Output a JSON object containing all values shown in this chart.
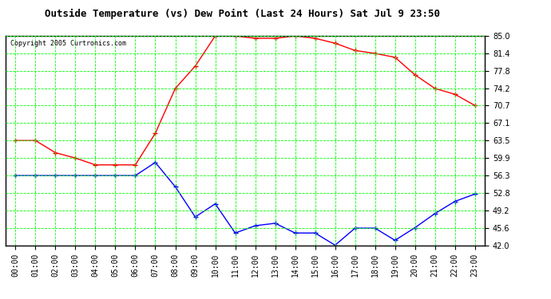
{
  "title": "Outside Temperature (vs) Dew Point (Last 24 Hours) Sat Jul 9 23:50",
  "copyright": "Copyright 2005 Curtronics.com",
  "background_color": "#ffffff",
  "plot_bg_color": "#ffffff",
  "grid_color": "#00ff00",
  "x_labels": [
    "00:00",
    "01:00",
    "02:00",
    "03:00",
    "04:00",
    "05:00",
    "06:00",
    "07:00",
    "08:00",
    "09:00",
    "10:00",
    "11:00",
    "12:00",
    "13:00",
    "14:00",
    "15:00",
    "16:00",
    "17:00",
    "18:00",
    "19:00",
    "20:00",
    "21:00",
    "22:00",
    "23:00"
  ],
  "ylim": [
    42.0,
    85.0
  ],
  "yticks": [
    42.0,
    45.6,
    49.2,
    52.8,
    56.3,
    59.9,
    63.5,
    67.1,
    70.7,
    74.2,
    77.8,
    81.4,
    85.0
  ],
  "temp_color": "#ff0000",
  "dew_color": "#0000ff",
  "temp_values": [
    63.5,
    63.5,
    61.0,
    59.9,
    58.5,
    58.5,
    58.5,
    65.0,
    74.2,
    78.8,
    85.0,
    85.0,
    84.5,
    84.5,
    85.0,
    84.5,
    83.5,
    82.0,
    81.4,
    80.6,
    77.0,
    74.2,
    73.0,
    70.7
  ],
  "dew_values": [
    56.3,
    56.3,
    56.3,
    56.3,
    56.3,
    56.3,
    56.3,
    59.0,
    54.0,
    47.8,
    50.5,
    44.5,
    46.0,
    46.5,
    44.5,
    44.5,
    42.0,
    45.5,
    45.5,
    43.0,
    45.6,
    48.5,
    51.0,
    52.5
  ],
  "title_fontsize": 9,
  "tick_fontsize": 7,
  "copyright_fontsize": 6
}
